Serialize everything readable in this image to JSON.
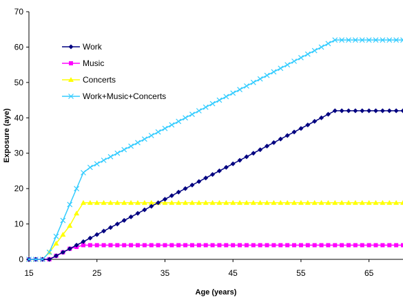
{
  "chart_data": {
    "type": "line",
    "xlabel": "Age (years)",
    "ylabel": "Exposure (aye)",
    "xlim": [
      15,
      70
    ],
    "ylim": [
      0,
      70
    ],
    "xticks": [
      15,
      25,
      35,
      45,
      55,
      65
    ],
    "yticks": [
      0,
      10,
      20,
      30,
      40,
      50,
      60,
      70
    ],
    "grid": false,
    "legend_position": "top-left",
    "x": [
      15,
      16,
      17,
      18,
      19,
      20,
      21,
      22,
      23,
      24,
      25,
      26,
      27,
      28,
      29,
      30,
      31,
      32,
      33,
      34,
      35,
      36,
      37,
      38,
      39,
      40,
      41,
      42,
      43,
      44,
      45,
      46,
      47,
      48,
      49,
      50,
      51,
      52,
      53,
      54,
      55,
      56,
      57,
      58,
      59,
      60,
      61,
      62,
      63,
      64,
      65,
      66,
      67,
      68,
      69,
      70
    ],
    "series": [
      {
        "name": "Work",
        "color": "#000080",
        "marker": "diamond",
        "values": [
          0,
          0,
          0,
          0,
          1,
          2,
          3,
          4,
          5,
          6,
          7,
          8,
          9,
          10,
          11,
          12,
          13,
          14,
          15,
          16,
          17,
          18,
          19,
          20,
          21,
          22,
          23,
          24,
          25,
          26,
          27,
          28,
          29,
          30,
          31,
          32,
          33,
          34,
          35,
          36,
          37,
          38,
          39,
          40,
          41,
          42,
          42,
          42,
          42,
          42,
          42,
          42,
          42,
          42,
          42,
          42
        ]
      },
      {
        "name": "Music",
        "color": "#ff00ff",
        "marker": "square",
        "values": [
          0,
          0,
          0,
          0,
          1,
          2,
          3,
          3.5,
          4,
          4,
          4,
          4,
          4,
          4,
          4,
          4,
          4,
          4,
          4,
          4,
          4,
          4,
          4,
          4,
          4,
          4,
          4,
          4,
          4,
          4,
          4,
          4,
          4,
          4,
          4,
          4,
          4,
          4,
          4,
          4,
          4,
          4,
          4,
          4,
          4,
          4,
          4,
          4,
          4,
          4,
          4,
          4,
          4,
          4,
          4,
          4
        ]
      },
      {
        "name": "Concerts",
        "color": "#ffff00",
        "marker": "triangle",
        "values": [
          0,
          0,
          0,
          2,
          4.5,
          7,
          9.5,
          13,
          16,
          16,
          16,
          16,
          16,
          16,
          16,
          16,
          16,
          16,
          16,
          16,
          16,
          16,
          16,
          16,
          16,
          16,
          16,
          16,
          16,
          16,
          16,
          16,
          16,
          16,
          16,
          16,
          16,
          16,
          16,
          16,
          16,
          16,
          16,
          16,
          16,
          16,
          16,
          16,
          16,
          16,
          16,
          16,
          16,
          16,
          16,
          16
        ]
      },
      {
        "name": "Work+Music+Concerts",
        "color": "#33ccff",
        "marker": "x",
        "values": [
          0,
          0,
          0,
          2,
          6.5,
          11,
          15.5,
          20,
          24.5,
          26,
          27,
          28,
          29,
          30,
          31,
          32,
          33,
          34,
          35,
          36,
          37,
          38,
          39,
          40,
          41,
          42,
          43,
          44,
          45,
          46,
          47,
          48,
          49,
          50,
          51,
          52,
          53,
          54,
          55,
          56,
          57,
          58,
          59,
          60,
          61,
          62,
          62,
          62,
          62,
          62,
          62,
          62,
          62,
          62,
          62,
          62
        ]
      }
    ]
  }
}
